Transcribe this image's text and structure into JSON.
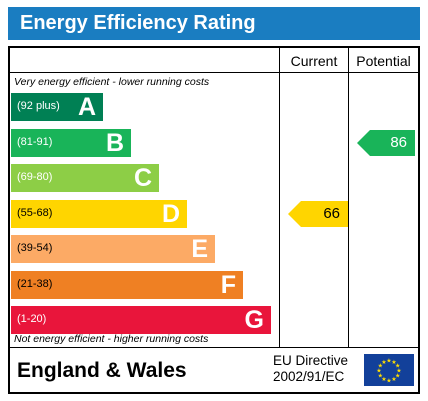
{
  "title": "Energy Efficiency Rating",
  "columns": {
    "current": "Current",
    "potential": "Potential"
  },
  "top_note": "Very energy efficient - lower running costs",
  "bottom_note": "Not energy efficient - higher running costs",
  "bands": [
    {
      "range": "(92 plus)",
      "letter": "A",
      "color": "#008054"
    },
    {
      "range": "(81-91)",
      "letter": "B",
      "color": "#19b459"
    },
    {
      "range": "(69-80)",
      "letter": "C",
      "color": "#8dce46"
    },
    {
      "range": "(55-68)",
      "letter": "D",
      "color": "#ffd500"
    },
    {
      "range": "(39-54)",
      "letter": "E",
      "color": "#fcaa65"
    },
    {
      "range": "(21-38)",
      "letter": "F",
      "color": "#ef8023"
    },
    {
      "range": "(1-20)",
      "letter": "G",
      "color": "#e9153b"
    }
  ],
  "current": {
    "value": "66",
    "band": "D",
    "color": "#ffd500"
  },
  "potential": {
    "value": "86",
    "band": "B",
    "color": "#19b459"
  },
  "footer": {
    "region": "England & Wales",
    "directive_line1": "EU Directive",
    "directive_line2": "2002/91/EC"
  }
}
